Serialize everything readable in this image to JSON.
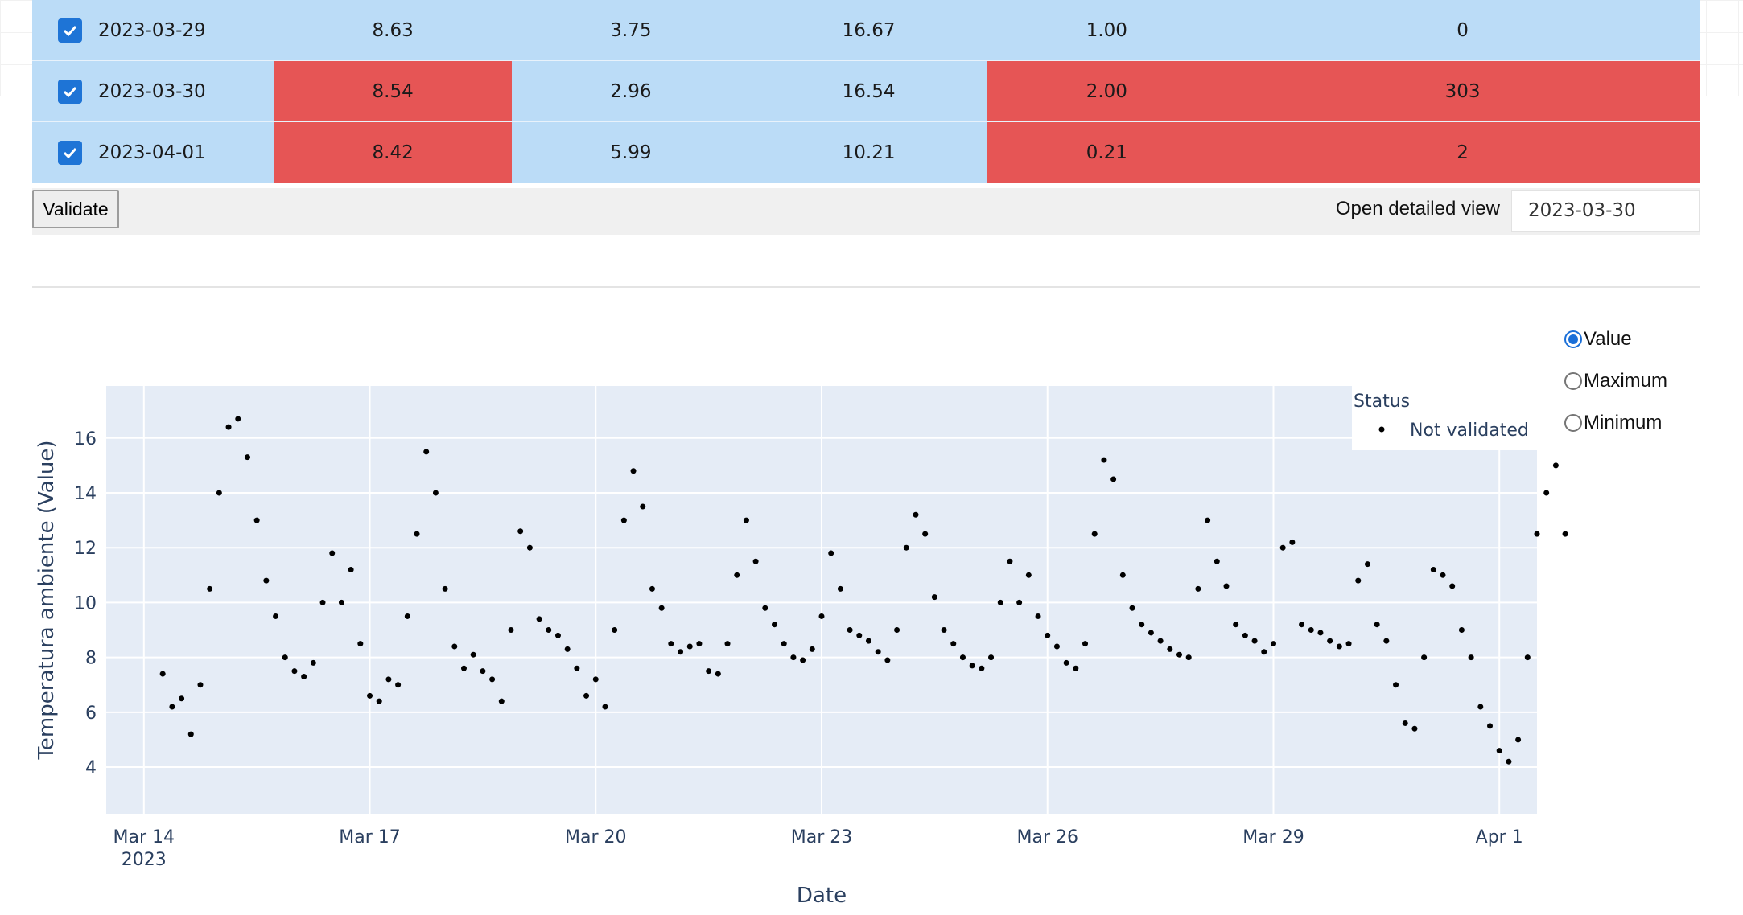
{
  "table": {
    "rows": [
      {
        "date": "2023-03-29",
        "c1": "8.63",
        "c2": "3.75",
        "c3": "16.67",
        "c4": "1.00",
        "c5": "0",
        "checked": true,
        "flag_c1": false,
        "flag_c4": false
      },
      {
        "date": "2023-03-30",
        "c1": "8.54",
        "c2": "2.96",
        "c3": "16.54",
        "c4": "2.00",
        "c5": "303",
        "checked": true,
        "flag_c1": true,
        "flag_c4": true
      },
      {
        "date": "2023-04-01",
        "c1": "8.42",
        "c2": "5.99",
        "c3": "10.21",
        "c4": "0.21",
        "c5": "2",
        "checked": true,
        "flag_c1": true,
        "flag_c4": true
      }
    ]
  },
  "toolbar": {
    "validate_label": "Validate",
    "detail_label": "Open detailed view",
    "detail_value": "2023-03-30"
  },
  "radios": [
    {
      "label": "Value",
      "selected": true
    },
    {
      "label": "Maximum",
      "selected": false
    },
    {
      "label": "Minimum",
      "selected": false
    }
  ],
  "colors": {
    "row_bg": "#bbdcf7",
    "flag_bg": "#e65555",
    "plot_bg": "#e5ecf6",
    "marker": "#000000",
    "radio_accent": "#1a6fd8"
  },
  "chart_data": {
    "type": "scatter",
    "xlabel": "Date",
    "ylabel": "Temperatura ambiente (Value)",
    "x_ticks": [
      "Mar 14",
      "Mar 17",
      "Mar 20",
      "Mar 23",
      "Mar 26",
      "Mar 29",
      "Apr 1"
    ],
    "x_tick_sub": "2023",
    "y_ticks": [
      4,
      6,
      8,
      10,
      12,
      14,
      16
    ],
    "xlim": [
      "2023-03-13T12:00",
      "2023-04-01T12:00"
    ],
    "ylim": [
      2.3,
      17.9
    ],
    "legend": {
      "title": "Status",
      "entries": [
        "Not validated"
      ],
      "placement": "top-right"
    },
    "grid": true,
    "series": [
      {
        "name": "Not validated",
        "points": [
          [
            "2023-03-14T06:00",
            7.4
          ],
          [
            "2023-03-14T09:00",
            6.2
          ],
          [
            "2023-03-14T12:00",
            6.5
          ],
          [
            "2023-03-14T15:00",
            5.2
          ],
          [
            "2023-03-14T18:00",
            7.0
          ],
          [
            "2023-03-14T21:00",
            10.5
          ],
          [
            "2023-03-15T00:00",
            14.0
          ],
          [
            "2023-03-15T03:00",
            16.4
          ],
          [
            "2023-03-15T06:00",
            16.7
          ],
          [
            "2023-03-15T09:00",
            15.3
          ],
          [
            "2023-03-15T12:00",
            13.0
          ],
          [
            "2023-03-15T15:00",
            10.8
          ],
          [
            "2023-03-15T18:00",
            9.5
          ],
          [
            "2023-03-15T21:00",
            8.0
          ],
          [
            "2023-03-16T00:00",
            7.5
          ],
          [
            "2023-03-16T03:00",
            7.3
          ],
          [
            "2023-03-16T06:00",
            7.8
          ],
          [
            "2023-03-16T09:00",
            10.0
          ],
          [
            "2023-03-16T12:00",
            11.8
          ],
          [
            "2023-03-16T15:00",
            10.0
          ],
          [
            "2023-03-16T18:00",
            11.2
          ],
          [
            "2023-03-16T21:00",
            8.5
          ],
          [
            "2023-03-17T00:00",
            6.6
          ],
          [
            "2023-03-17T03:00",
            6.4
          ],
          [
            "2023-03-17T06:00",
            7.2
          ],
          [
            "2023-03-17T09:00",
            7.0
          ],
          [
            "2023-03-17T12:00",
            9.5
          ],
          [
            "2023-03-17T15:00",
            12.5
          ],
          [
            "2023-03-17T18:00",
            15.5
          ],
          [
            "2023-03-17T21:00",
            14.0
          ],
          [
            "2023-03-18T00:00",
            10.5
          ],
          [
            "2023-03-18T03:00",
            8.4
          ],
          [
            "2023-03-18T06:00",
            7.6
          ],
          [
            "2023-03-18T09:00",
            8.1
          ],
          [
            "2023-03-18T12:00",
            7.5
          ],
          [
            "2023-03-18T15:00",
            7.2
          ],
          [
            "2023-03-18T18:00",
            6.4
          ],
          [
            "2023-03-18T21:00",
            9.0
          ],
          [
            "2023-03-19T00:00",
            12.6
          ],
          [
            "2023-03-19T03:00",
            12.0
          ],
          [
            "2023-03-19T06:00",
            9.4
          ],
          [
            "2023-03-19T09:00",
            9.0
          ],
          [
            "2023-03-19T12:00",
            8.8
          ],
          [
            "2023-03-19T15:00",
            8.3
          ],
          [
            "2023-03-19T18:00",
            7.6
          ],
          [
            "2023-03-19T21:00",
            6.6
          ],
          [
            "2023-03-20T00:00",
            7.2
          ],
          [
            "2023-03-20T03:00",
            6.2
          ],
          [
            "2023-03-20T06:00",
            9.0
          ],
          [
            "2023-03-20T09:00",
            13.0
          ],
          [
            "2023-03-20T12:00",
            14.8
          ],
          [
            "2023-03-20T15:00",
            13.5
          ],
          [
            "2023-03-20T18:00",
            10.5
          ],
          [
            "2023-03-20T21:00",
            9.8
          ],
          [
            "2023-03-21T00:00",
            8.5
          ],
          [
            "2023-03-21T03:00",
            8.2
          ],
          [
            "2023-03-21T06:00",
            8.4
          ],
          [
            "2023-03-21T09:00",
            8.5
          ],
          [
            "2023-03-21T12:00",
            7.5
          ],
          [
            "2023-03-21T15:00",
            7.4
          ],
          [
            "2023-03-21T18:00",
            8.5
          ],
          [
            "2023-03-21T21:00",
            11.0
          ],
          [
            "2023-03-22T00:00",
            13.0
          ],
          [
            "2023-03-22T03:00",
            11.5
          ],
          [
            "2023-03-22T06:00",
            9.8
          ],
          [
            "2023-03-22T09:00",
            9.2
          ],
          [
            "2023-03-22T12:00",
            8.5
          ],
          [
            "2023-03-22T15:00",
            8.0
          ],
          [
            "2023-03-22T18:00",
            7.9
          ],
          [
            "2023-03-22T21:00",
            8.3
          ],
          [
            "2023-03-23T00:00",
            9.5
          ],
          [
            "2023-03-23T03:00",
            11.8
          ],
          [
            "2023-03-23T06:00",
            10.5
          ],
          [
            "2023-03-23T09:00",
            9.0
          ],
          [
            "2023-03-23T12:00",
            8.8
          ],
          [
            "2023-03-23T15:00",
            8.6
          ],
          [
            "2023-03-23T18:00",
            8.2
          ],
          [
            "2023-03-23T21:00",
            7.9
          ],
          [
            "2023-03-24T00:00",
            9.0
          ],
          [
            "2023-03-24T03:00",
            12.0
          ],
          [
            "2023-03-24T06:00",
            13.2
          ],
          [
            "2023-03-24T09:00",
            12.5
          ],
          [
            "2023-03-24T12:00",
            10.2
          ],
          [
            "2023-03-24T15:00",
            9.0
          ],
          [
            "2023-03-24T18:00",
            8.5
          ],
          [
            "2023-03-24T21:00",
            8.0
          ],
          [
            "2023-03-25T00:00",
            7.7
          ],
          [
            "2023-03-25T03:00",
            7.6
          ],
          [
            "2023-03-25T06:00",
            8.0
          ],
          [
            "2023-03-25T09:00",
            10.0
          ],
          [
            "2023-03-25T12:00",
            11.5
          ],
          [
            "2023-03-25T15:00",
            10.0
          ],
          [
            "2023-03-25T18:00",
            11.0
          ],
          [
            "2023-03-25T21:00",
            9.5
          ],
          [
            "2023-03-26T00:00",
            8.8
          ],
          [
            "2023-03-26T03:00",
            8.4
          ],
          [
            "2023-03-26T06:00",
            7.8
          ],
          [
            "2023-03-26T09:00",
            7.6
          ],
          [
            "2023-03-26T12:00",
            8.5
          ],
          [
            "2023-03-26T15:00",
            12.5
          ],
          [
            "2023-03-26T18:00",
            15.2
          ],
          [
            "2023-03-26T21:00",
            14.5
          ],
          [
            "2023-03-27T00:00",
            11.0
          ],
          [
            "2023-03-27T03:00",
            9.8
          ],
          [
            "2023-03-27T06:00",
            9.2
          ],
          [
            "2023-03-27T09:00",
            8.9
          ],
          [
            "2023-03-27T12:00",
            8.6
          ],
          [
            "2023-03-27T15:00",
            8.3
          ],
          [
            "2023-03-27T18:00",
            8.1
          ],
          [
            "2023-03-27T21:00",
            8.0
          ],
          [
            "2023-03-28T00:00",
            10.5
          ],
          [
            "2023-03-28T03:00",
            13.0
          ],
          [
            "2023-03-28T06:00",
            11.5
          ],
          [
            "2023-03-28T09:00",
            10.6
          ],
          [
            "2023-03-28T12:00",
            9.2
          ],
          [
            "2023-03-28T15:00",
            8.8
          ],
          [
            "2023-03-28T18:00",
            8.6
          ],
          [
            "2023-03-28T21:00",
            8.2
          ],
          [
            "2023-03-29T00:00",
            8.5
          ],
          [
            "2023-03-29T03:00",
            12.0
          ],
          [
            "2023-03-29T06:00",
            12.2
          ],
          [
            "2023-03-29T09:00",
            9.2
          ],
          [
            "2023-03-29T12:00",
            9.0
          ],
          [
            "2023-03-29T15:00",
            8.9
          ],
          [
            "2023-03-29T18:00",
            8.6
          ],
          [
            "2023-03-29T21:00",
            8.4
          ],
          [
            "2023-03-30T00:00",
            8.5
          ],
          [
            "2023-03-30T03:00",
            10.8
          ],
          [
            "2023-03-30T06:00",
            11.4
          ],
          [
            "2023-03-30T09:00",
            9.2
          ],
          [
            "2023-03-30T12:00",
            8.6
          ],
          [
            "2023-03-30T15:00",
            7.0
          ],
          [
            "2023-03-30T18:00",
            5.6
          ],
          [
            "2023-03-30T21:00",
            5.4
          ],
          [
            "2023-03-31T00:00",
            8.0
          ],
          [
            "2023-03-31T03:00",
            11.2
          ],
          [
            "2023-03-31T06:00",
            11.0
          ],
          [
            "2023-03-31T09:00",
            10.6
          ],
          [
            "2023-03-31T12:00",
            9.0
          ],
          [
            "2023-03-31T15:00",
            8.0
          ],
          [
            "2023-03-31T18:00",
            6.2
          ],
          [
            "2023-03-31T21:00",
            5.5
          ],
          [
            "2023-04-01T00:00",
            4.6
          ],
          [
            "2023-04-01T03:00",
            4.2
          ],
          [
            "2023-04-01T06:00",
            5.0
          ],
          [
            "2023-04-01T09:00",
            8.0
          ],
          [
            "2023-04-01T12:00",
            12.5
          ],
          [
            "2023-04-01T15:00",
            14.0
          ],
          [
            "2023-04-01T18:00",
            15.0
          ],
          [
            "2023-04-01T21:00",
            12.5
          ]
        ]
      }
    ]
  }
}
